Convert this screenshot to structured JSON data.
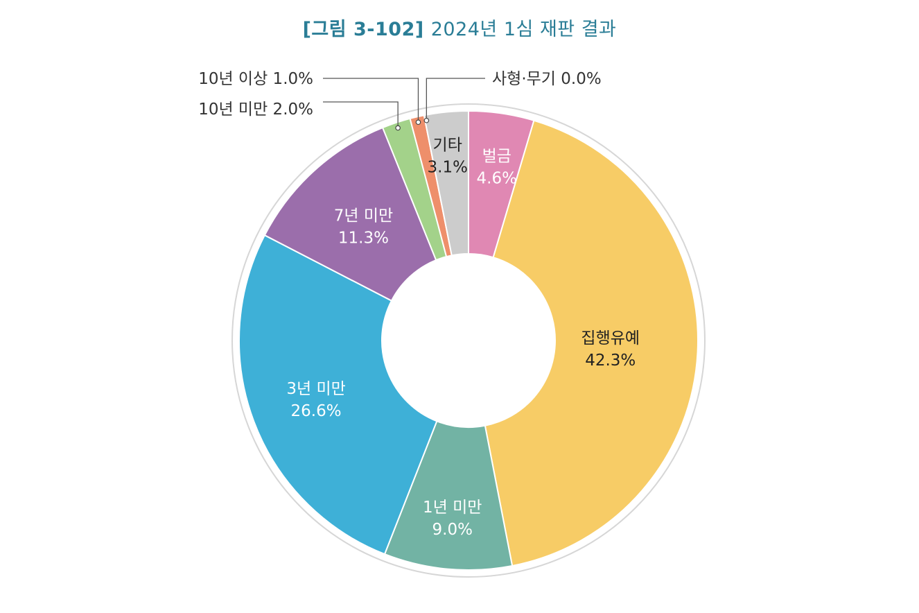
{
  "title": {
    "figure": "[그림 3-102]",
    "text": "2024년 1심 재판 결과"
  },
  "chart_data": {
    "type": "pie",
    "variant": "donut",
    "start_angle_deg": 0,
    "direction": "clockwise",
    "slices": [
      {
        "name": "벌금",
        "label": "벌금",
        "value": 4.6,
        "value_label": "4.6%",
        "color": "#e088b3",
        "label_color": "#ffffff",
        "callout": false
      },
      {
        "name": "집행유예",
        "label": "집행유예",
        "value": 42.3,
        "value_label": "42.3%",
        "color": "#f7cc66",
        "label_color": "#222222",
        "callout": false
      },
      {
        "name": "1년 미만",
        "label": "1년 미만",
        "value": 9.0,
        "value_label": "9.0%",
        "color": "#72b3a4",
        "label_color": "#ffffff",
        "callout": false
      },
      {
        "name": "3년 미만",
        "label": "3년 미만",
        "value": 26.6,
        "value_label": "26.6%",
        "color": "#3eb0d7",
        "label_color": "#ffffff",
        "callout": false
      },
      {
        "name": "7년 미만",
        "label": "7년 미만",
        "value": 11.3,
        "value_label": "11.3%",
        "color": "#9b6eab",
        "label_color": "#ffffff",
        "callout": false
      },
      {
        "name": "10년 미만",
        "label": "10년 미만",
        "value": 2.0,
        "value_label": "2.0%",
        "color": "#a3d28a",
        "label_color": "#333333",
        "callout": true
      },
      {
        "name": "10년 이상",
        "label": "10년 이상",
        "value": 1.0,
        "value_label": "1.0%",
        "color": "#ee8f6b",
        "label_color": "#333333",
        "callout": true
      },
      {
        "name": "사형·무기",
        "label": "사형·무기",
        "value": 0.0,
        "value_label": "0.0%",
        "color": "#e25b2d",
        "label_color": "#333333",
        "callout": true
      },
      {
        "name": "기타",
        "label": "기타",
        "value": 3.1,
        "value_label": "3.1%",
        "color": "#cccccc",
        "label_color": "#222222",
        "callout": false
      }
    ]
  }
}
